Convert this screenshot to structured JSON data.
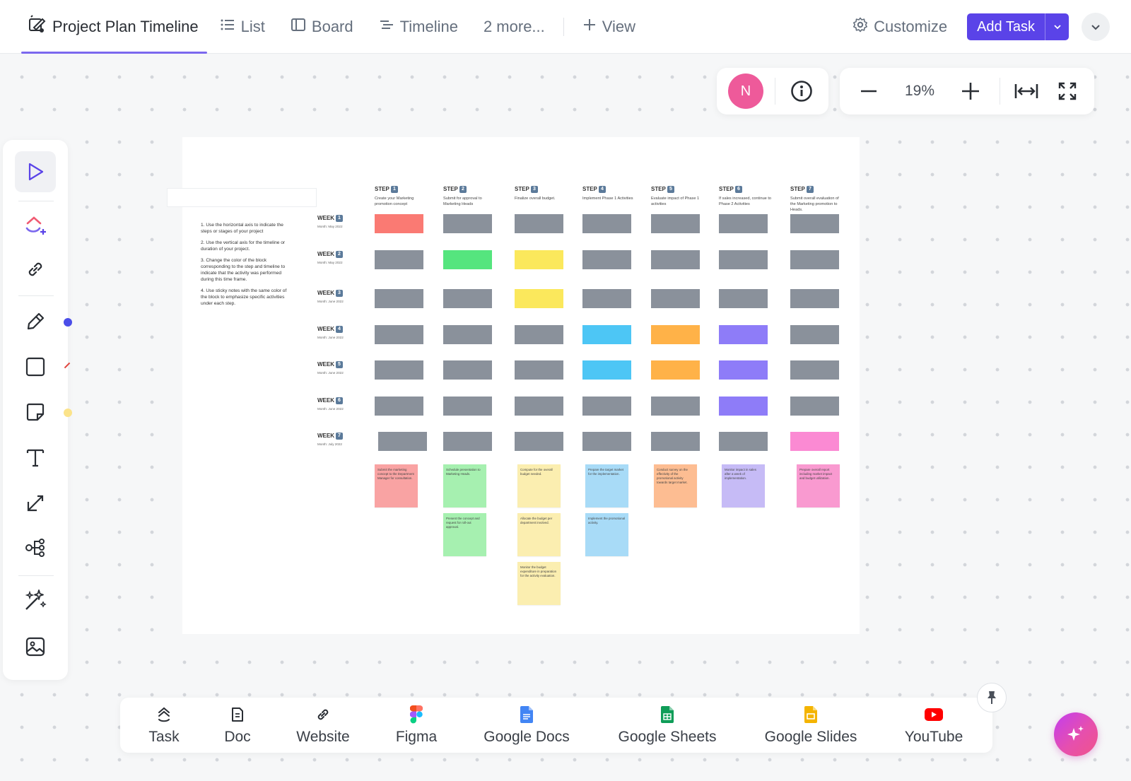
{
  "header": {
    "title": "Project Plan Timeline",
    "tabs": [
      {
        "label": "List",
        "icon": "list-icon"
      },
      {
        "label": "Board",
        "icon": "board-icon"
      },
      {
        "label": "Timeline",
        "icon": "timeline-icon"
      },
      {
        "label": "2 more..."
      }
    ],
    "add_view": "View",
    "customize": "Customize",
    "add_task": "Add Task"
  },
  "controls": {
    "avatar_initial": "N",
    "zoom": "19%"
  },
  "board": {
    "instructions": [
      "1. Use the horizontal axis to indicate the steps or stages of your project",
      "2. Use the vertical axis for the timeline or duration of your project.",
      "3. Change the color of the block corresponding to the step and timeline to indicate that the activity was performed during this time frame.",
      "4. Use sticky notes with the same color of the block to emphasize specific activities under each step."
    ],
    "step_word": "STEP",
    "week_word": "WEEK",
    "steps": [
      {
        "num": "1",
        "desc": "Create your Marketing promotion concept"
      },
      {
        "num": "2",
        "desc": "Submit for approval to Marketing Heads"
      },
      {
        "num": "3",
        "desc": "Finalize overall budget."
      },
      {
        "num": "4",
        "desc": "Implement Phase 1 Activities"
      },
      {
        "num": "5",
        "desc": "Evaluate impact of Phase 1 activities"
      },
      {
        "num": "6",
        "desc": "If sales increased, continue to Phase 2 Activities"
      },
      {
        "num": "7",
        "desc": "Submit overall evaluation of the Marketing promotion to Heads."
      }
    ],
    "weeks": [
      {
        "num": "1",
        "sub": "Month: May 2022"
      },
      {
        "num": "2",
        "sub": "Month: May 2022"
      },
      {
        "num": "3",
        "sub": "Month: June 2022"
      },
      {
        "num": "4",
        "sub": "Month: June 2022"
      },
      {
        "num": "5",
        "sub": "Month: June 2022"
      },
      {
        "num": "6",
        "sub": "Month: June 2022"
      },
      {
        "num": "7",
        "sub": "Month: July 2022"
      }
    ],
    "grid_colors": [
      [
        "#fa7a73",
        "#8a919b",
        "#8a919b",
        "#8a919b",
        "#8a919b",
        "#8a919b",
        "#8a919b"
      ],
      [
        "#8a919b",
        "#55e57e",
        "#fbe85c",
        "#8a919b",
        "#8a919b",
        "#8a919b",
        "#8a919b"
      ],
      [
        "#8a919b",
        "#8a919b",
        "#fbe85c",
        "#8a919b",
        "#8a919b",
        "#8a919b",
        "#8a919b"
      ],
      [
        "#8a919b",
        "#8a919b",
        "#8a919b",
        "#4dc6f5",
        "#ffb248",
        "#8e7cf8",
        "#8a919b"
      ],
      [
        "#8a919b",
        "#8a919b",
        "#8a919b",
        "#4dc6f5",
        "#ffb248",
        "#8e7cf8",
        "#8a919b"
      ],
      [
        "#8a919b",
        "#8a919b",
        "#8a919b",
        "#8a919b",
        "#8a919b",
        "#8e7cf8",
        "#8a919b"
      ],
      [
        "#8a919b",
        "#8a919b",
        "#8a919b",
        "#8a919b",
        "#8a919b",
        "#8a919b",
        "#fb8ad3"
      ]
    ],
    "notes": [
      {
        "col": 0,
        "row": 0,
        "color": "#f9a3a3",
        "text": "Submit the marketing concept to the Department Manager for consultation."
      },
      {
        "col": 1,
        "row": 0,
        "color": "#a6f0b0",
        "text": "Schedule presentation to Marketing Heads."
      },
      {
        "col": 1,
        "row": 1,
        "color": "#a6f0b0",
        "text": "Present the concept and request for roll-out approval."
      },
      {
        "col": 2,
        "row": 0,
        "color": "#fbeeb0",
        "text": "Compute for the overall budget needed."
      },
      {
        "col": 2,
        "row": 1,
        "color": "#fbeeb0",
        "text": "Allocate the budget per department involved."
      },
      {
        "col": 2,
        "row": 2,
        "color": "#fbeeb0",
        "text": "Monitor the budget expenditure in preparation for the activity evaluation."
      },
      {
        "col": 3,
        "row": 0,
        "color": "#a8dbf7",
        "text": "Prepare the target market for the implementation."
      },
      {
        "col": 3,
        "row": 1,
        "color": "#a8dbf7",
        "text": "Implement the promotional activity."
      },
      {
        "col": 4,
        "row": 0,
        "color": "#fdbd92",
        "text": "Conduct survey on the effectivity of the promotional activity towards target market."
      },
      {
        "col": 5,
        "row": 0,
        "color": "#c6bbf6",
        "text": "Monitor impact in sales after a week of implementation."
      },
      {
        "col": 6,
        "row": 0,
        "color": "#f99ad0",
        "text": "Prepare overall report including market impact and budget utilization."
      }
    ]
  },
  "bottom_bar": {
    "items": [
      {
        "label": "Task",
        "icon": "task-icon"
      },
      {
        "label": "Doc",
        "icon": "doc-icon"
      },
      {
        "label": "Website",
        "icon": "link-icon"
      },
      {
        "label": "Figma",
        "icon": "figma-icon"
      },
      {
        "label": "Google Docs",
        "icon": "google-docs-icon"
      },
      {
        "label": "Google Sheets",
        "icon": "google-sheets-icon"
      },
      {
        "label": "Google Slides",
        "icon": "google-slides-icon"
      },
      {
        "label": "YouTube",
        "icon": "youtube-icon"
      }
    ]
  },
  "colors": {
    "accent": "#7b68ee",
    "primary_button": "#5a43e8",
    "avatar": "#ee5a9a",
    "cell_gray": "#8a919b"
  }
}
